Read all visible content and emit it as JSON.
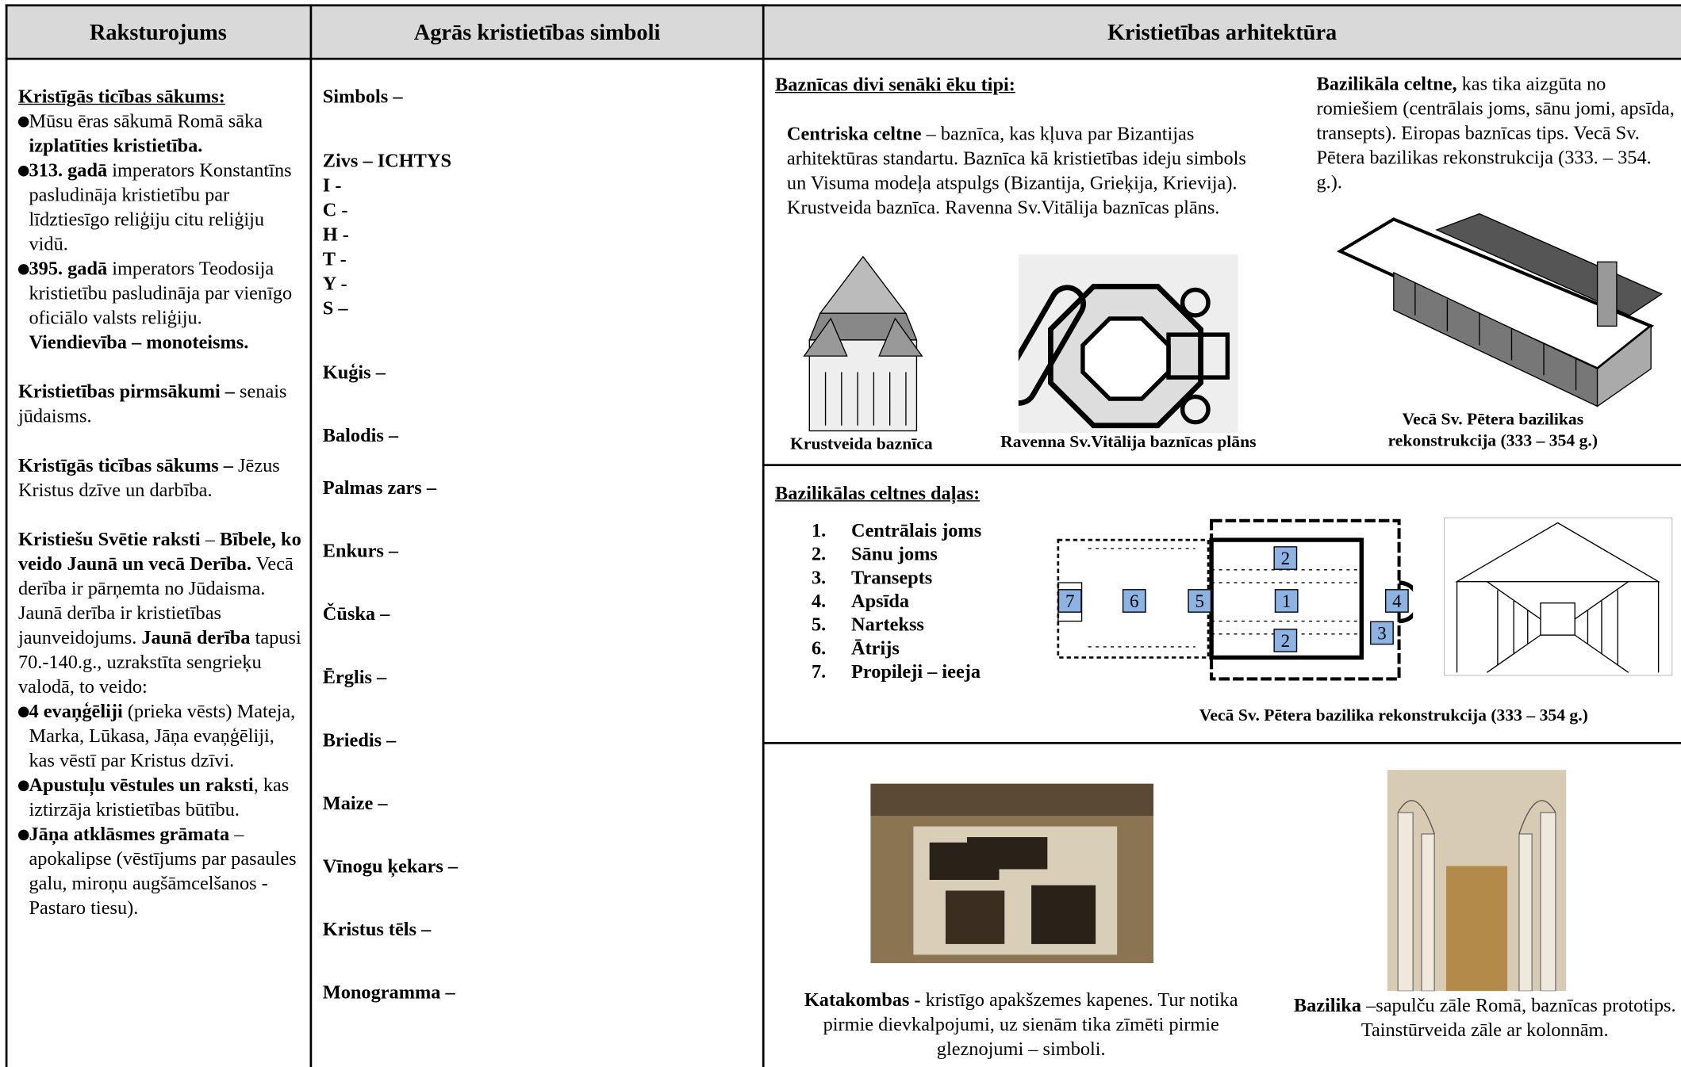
{
  "header": {
    "col1": "Raksturojums",
    "col2": "Agrās kristietības simboli",
    "col3": "Kristietības arhitektūra"
  },
  "characteristics": {
    "heading": "Kristīgās ticības sākums:",
    "bullets1": [
      [
        {
          "text": "Mūsu ēras sākumā Romā sāka ",
          "bold": false
        },
        {
          "text": "izplatīties kristietība.",
          "bold": true
        }
      ],
      [
        {
          "text": "313. gadā",
          "bold": true
        },
        {
          "text": " imperators Konstantīns pasludināja kristietību par līdztiesīgo reliģiju citu reliģiju vidū.",
          "bold": false
        }
      ],
      [
        {
          "text": "395. gadā",
          "bold": true
        },
        {
          "text": " imperators Teodosija kristietību pasludināja par vienīgo oficiālo valsts reliģiju.",
          "bold": false
        },
        {
          "text": " Viendievība – monoteisms.",
          "bold": true
        }
      ]
    ],
    "paragraphs": [
      [
        {
          "text": "Kristietības pirmsākumi –",
          "bold": true
        },
        {
          "text": " senais jūdaisms.",
          "bold": false
        }
      ],
      [
        {
          "text": "Kristīgās ticības sākums –",
          "bold": true
        },
        {
          "text": " Jēzus Kristus dzīve un darbība.",
          "bold": false
        }
      ],
      [
        {
          "text": "Kristiešu Svētie raksti",
          "bold": true
        },
        {
          "text": " – ",
          "bold": false
        },
        {
          "text": "Bībele, ko veido Jaunā un vecā Derība.",
          "bold": true
        },
        {
          "text": " Vecā derība ir pārņemta no Jūdaisma. Jaunā derība ir kristietības jaunveidojums.",
          "bold": false
        },
        {
          "text": "  Jaunā derība",
          "bold": true
        },
        {
          "text": " tapusi 70.-140.g., uzrakstīta sengrieķu valodā, to veido:",
          "bold": false
        }
      ]
    ],
    "bullets2": [
      [
        {
          "text": "4 evaņģēliji",
          "bold": true
        },
        {
          "text": " (prieka vēsts) Mateja, Marka, Lūkasa, Jāņa evaņģēliji, kas vēstī par Kristus dzīvi.",
          "bold": false
        }
      ],
      [
        {
          "text": "Apustuļu vēstules un raksti",
          "bold": true
        },
        {
          "text": ", kas iztirzāja kristietības būtību.",
          "bold": false
        }
      ],
      [
        {
          "text": "Jāņa atklāsmes grāmata",
          "bold": true
        },
        {
          "text": " – apokalipse (vēstījums par pasaules galu, miroņu augšāmcelšanos - Pastaro tiesu).",
          "bold": false
        }
      ]
    ]
  },
  "symbols": [
    "Simbols –",
    "Zivs – ICHTYS",
    "I -",
    "C -",
    "H -",
    "T -",
    "Y -",
    "S –",
    "Kuģis –",
    "Balodis –",
    "Palmas zars –",
    "Enkurs –",
    "Čūska –",
    "Ērglis –",
    "Briedis –",
    "Maize –",
    "Vīnogu ķekars –",
    "Kristus tēls –",
    "Monogramma –"
  ],
  "architecture": {
    "types_heading": "Baznīcas divi senāki ēku tipi:",
    "central": [
      {
        "text": "Centriska celtne",
        "bold": true
      },
      {
        "text": " – baznīca, kas kļuva par Bizantijas arhitektūras standartu. Baznīca kā kristietības ideju simbols un Visuma modeļa atspulgs (Bizantija, Grieķija, Krievija). Krustveida baznīca. Ravenna Sv.Vitālija baznīcas plāns.",
        "bold": false
      }
    ],
    "basilical": [
      {
        "text": "Bazilikāla celtne,",
        "bold": true
      },
      {
        "text": " kas tika aizgūta no romiešiem (centrālais joms, sānu jomi, apsīda, transepts). Eiropas baznīcas tips. Vecā Sv. Pētera bazilikas rekonstrukcija (333. – 354. g.).",
        "bold": false
      }
    ],
    "caption_cross": "Krustveida baznīca",
    "caption_ravenna": "Ravenna Sv.Vitālija baznīcas plāns",
    "caption_peter": "Vecā Sv. Pētera bazilikas rekonstrukcija (333 – 354 g.)",
    "parts_heading": "Bazilikālas celtnes daļas:",
    "parts": [
      {
        "number": "1.",
        "label": "Centrālais joms"
      },
      {
        "number": "2.",
        "label": "Sānu joms"
      },
      {
        "number": "3.",
        "label": "Transepts"
      },
      {
        "number": "4.",
        "label": "Apsīda"
      },
      {
        "number": "5.",
        "label": "Nartekss"
      },
      {
        "number": "6.",
        "label": "Ātrijs"
      },
      {
        "number": "7.",
        "label": "Propileji – ieeja"
      }
    ],
    "plan_labels": [
      "7",
      "6",
      "5",
      "1",
      "2",
      "2",
      "4",
      "3"
    ],
    "caption_plan": "Vecā Sv. Pētera bazilika rekonstrukcija (333 – 354 g.)",
    "catacombs": [
      {
        "text": "Katakombas -",
        "bold": true
      },
      {
        "text": "  kristīgo apakšzemes kapenes. Tur notika pirmie dievkalpojumi, uz sienām tika zīmēti pirmie gleznojumi – simboli.",
        "bold": false
      }
    ],
    "basilica": [
      {
        "text": "Bazilika",
        "bold": true
      },
      {
        "text": " –sapulču zāle Romā, baznīcas prototips. Tainstūrveida zāle ar kolonnām.",
        "bold": false
      }
    ]
  }
}
